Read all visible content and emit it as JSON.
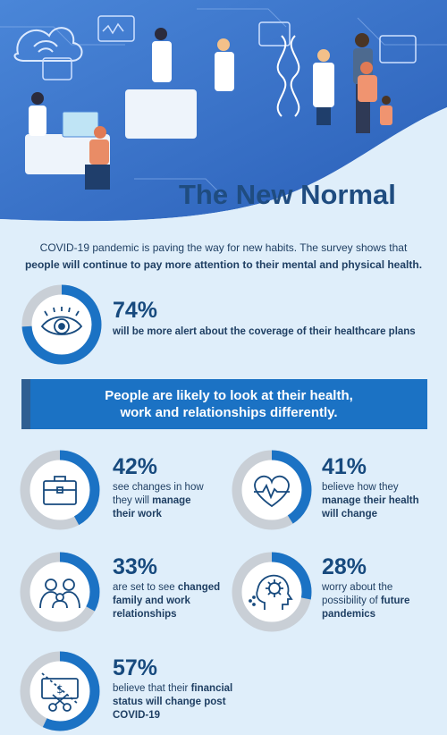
{
  "title": "The New Normal",
  "intro": {
    "line1": "COVID-19 pandemic is paving the way for new habits. The survey shows that",
    "line2": "people will continue to pay more attention to their mental and physical health."
  },
  "banner": {
    "line1": "People are likely to look at their health,",
    "line2": "work and relationships differently."
  },
  "colors": {
    "ring_fill": "#1b72c4",
    "ring_track": "#c9cfd6",
    "banner": "#1b72c4",
    "text": "#174a7e"
  },
  "stats": [
    {
      "id": "healthcare",
      "percent": 74,
      "value": "74%",
      "icon": "eye-icon",
      "text_plain": "",
      "text_bold": "will be more alert about the coverage of their healthcare plans"
    },
    {
      "id": "work",
      "percent": 42,
      "value": "42%",
      "icon": "briefcase-icon",
      "text_plain": "see changes in how they will",
      "text_bold": "manage their work"
    },
    {
      "id": "health",
      "percent": 41,
      "value": "41%",
      "icon": "heartbeat-icon",
      "text_plain": "believe how they",
      "text_bold": "manage their health will change"
    },
    {
      "id": "relationships",
      "percent": 33,
      "value": "33%",
      "icon": "family-icon",
      "text_plain": "are set to see",
      "text_bold": "changed family and work relationships"
    },
    {
      "id": "pandemics",
      "percent": 28,
      "value": "28%",
      "icon": "head-virus-icon",
      "text_plain": "worry about the possibility of",
      "text_bold": "future pandemics"
    },
    {
      "id": "financial",
      "percent": 57,
      "value": "57%",
      "icon": "cut-money-icon",
      "text_plain": "believe that their",
      "text_bold": "financial status will change post COVID-19"
    }
  ]
}
